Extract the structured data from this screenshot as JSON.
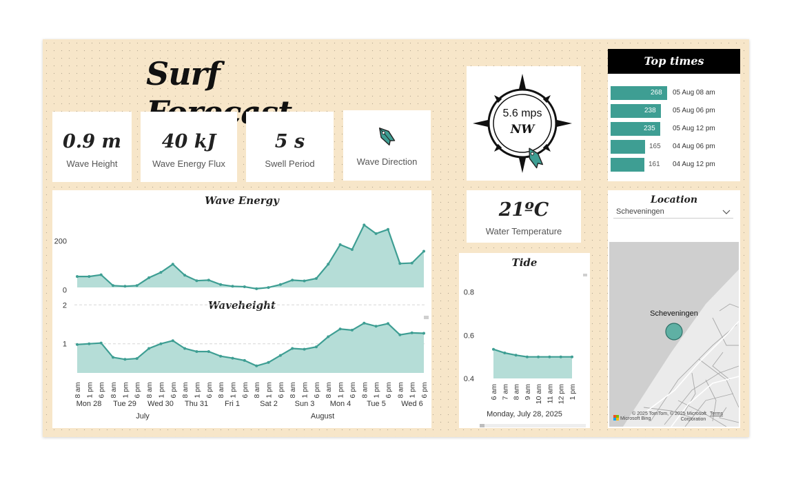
{
  "title": "Surf Forecast",
  "kpis": [
    {
      "value": "0.9 m",
      "label": "Wave Height"
    },
    {
      "value": "40 kJ",
      "label": "Wave Energy Flux"
    },
    {
      "value": "5 s",
      "label": "Swell Period"
    }
  ],
  "wave_direction": {
    "label": "Wave Direction",
    "icon": "wave-direction-arrow-icon"
  },
  "wind": {
    "speed": "5.6 mps",
    "direction": "NW",
    "icon": "compass-icon"
  },
  "water_temperature": {
    "value": "21ºC",
    "label": "Water Temperature"
  },
  "top_times": {
    "title": "Top times",
    "items": [
      {
        "value": "268",
        "date": "05 Aug 08 am"
      },
      {
        "value": "238",
        "date": "05 Aug 06 pm"
      },
      {
        "value": "235",
        "date": "05 Aug 12 pm"
      },
      {
        "value": "165",
        "date": "04 Aug 06 pm"
      },
      {
        "value": "161",
        "date": "04 Aug 12 pm"
      }
    ]
  },
  "location": {
    "title": "Location",
    "selected": "Scheveningen",
    "map_label": "Scheveningen",
    "attribution": "© 2025 TomTom, © 2025 Microsoft Corporation",
    "attribution_line1": "© 2025 TomTom, © 2025 Microsoft",
    "attribution_line2": "Corporation",
    "terms_link": "Terms",
    "logo": "Microsoft Bing"
  },
  "colors": {
    "accent": "#3e9e93",
    "fill": "#b5ddd7",
    "canvas": "#f7e6c9"
  },
  "chart_data": [
    {
      "type": "area",
      "title": "Wave Energy",
      "yticks": [
        0,
        200
      ],
      "ylim": [
        -15,
        300
      ],
      "x": [
        "8 am",
        "1 pm",
        "6 pm",
        "8 am",
        "1 pm",
        "6 pm",
        "8 am",
        "1 pm",
        "6 pm",
        "8 am",
        "1 pm",
        "6 pm",
        "8 am",
        "1 pm",
        "6 pm",
        "8 am",
        "1 pm",
        "6 pm",
        "8 am",
        "1 pm",
        "6 pm",
        "8 am",
        "1 pm",
        "6 pm",
        "8 am",
        "1 pm",
        "6 pm",
        "8 am",
        "1 pm",
        "6 pm"
      ],
      "values": [
        55,
        55,
        62,
        18,
        15,
        18,
        50,
        72,
        105,
        60,
        38,
        40,
        22,
        15,
        13,
        5,
        10,
        22,
        40,
        37,
        47,
        105,
        185,
        165,
        265,
        230,
        247,
        108,
        110,
        158
      ]
    },
    {
      "type": "area",
      "title": "Waveheight",
      "yticks": [
        1.0,
        2.0
      ],
      "ylim": [
        0.25,
        2.2
      ],
      "x": [
        "8 am",
        "1 pm",
        "6 pm",
        "8 am",
        "1 pm",
        "6 pm",
        "8 am",
        "1 pm",
        "6 pm",
        "8 am",
        "1 pm",
        "6 pm",
        "8 am",
        "1 pm",
        "6 pm",
        "8 am",
        "1 pm",
        "6 pm",
        "8 am",
        "1 pm",
        "6 pm",
        "8 am",
        "1 pm",
        "6 pm",
        "8 am",
        "1 pm",
        "6 pm",
        "8 am",
        "1 pm",
        "6 pm"
      ],
      "values": [
        0.98,
        1.0,
        1.02,
        0.65,
        0.6,
        0.62,
        0.88,
        1.0,
        1.08,
        0.88,
        0.8,
        0.8,
        0.68,
        0.63,
        0.57,
        0.43,
        0.52,
        0.7,
        0.88,
        0.86,
        0.92,
        1.18,
        1.38,
        1.35,
        1.53,
        1.45,
        1.52,
        1.23,
        1.28,
        1.27
      ],
      "days": [
        "Mon 28",
        "Tue 29",
        "Wed 30",
        "Thu 31",
        "Fri 1",
        "Sat 2",
        "Sun 3",
        "Mon 4",
        "Tue 5",
        "Wed 6"
      ],
      "months": [
        "July",
        "August"
      ]
    },
    {
      "type": "area",
      "title": "Tide",
      "yticks": [
        0.4,
        0.6,
        0.8
      ],
      "ylim": [
        0.4,
        0.85
      ],
      "x": [
        "6 am",
        "7 am",
        "8 am",
        "9 am",
        "10 am",
        "11 am",
        "12 pm",
        "1 pm"
      ],
      "values": [
        0.535,
        0.518,
        0.508,
        0.5,
        0.5,
        0.5,
        0.5,
        0.5
      ],
      "xlabel": "Monday, July 28, 2025"
    }
  ]
}
